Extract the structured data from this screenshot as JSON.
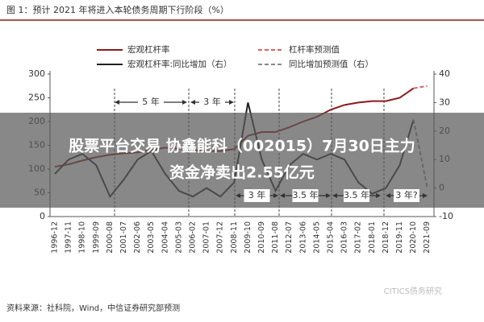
{
  "chart_data": {
    "type": "line",
    "title": "图 1：预计 2021 年将进入本轮债务周期下行阶段（%）",
    "source": "资料来源：社科院，Wind，中信证券研究部预测",
    "watermark": "CITICS债务研究",
    "categories": [
      "1996-12",
      "1997-11",
      "1998-10",
      "1999-09",
      "2000-08",
      "2001-07",
      "2002-06",
      "2003-05",
      "2004-04",
      "2005-03",
      "2006-02",
      "2007-01",
      "2007-12",
      "2008-11",
      "2009-10",
      "2010-09",
      "2011-08",
      "2012-07",
      "2013-06",
      "2014-05",
      "2015-04",
      "2016-03",
      "2017-02",
      "2018-01",
      "2018-12",
      "2019-11",
      "2020-10",
      "2021-09"
    ],
    "series": [
      {
        "name": "宏观杠杆率",
        "color": "#8b1a1a",
        "linestyle": "solid",
        "axis": "y",
        "values": [
          105,
          110,
          118,
          125,
          130,
          133,
          135,
          140,
          145,
          143,
          140,
          138,
          138,
          142,
          170,
          178,
          178,
          188,
          200,
          210,
          225,
          235,
          240,
          243,
          243,
          250,
          270,
          null
        ]
      },
      {
        "name": "杠杆率预测值",
        "color": "#e06060",
        "linestyle": "dashed",
        "axis": "y",
        "values": [
          null,
          null,
          null,
          null,
          null,
          null,
          null,
          null,
          null,
          null,
          null,
          null,
          null,
          null,
          null,
          null,
          null,
          null,
          null,
          null,
          null,
          null,
          null,
          null,
          null,
          null,
          270,
          275
        ]
      },
      {
        "name": "宏观杠杆率:同比增加（右）",
        "color": "#222222",
        "linestyle": "solid",
        "axis": "y2",
        "values": [
          5,
          10,
          12,
          8,
          -3,
          3,
          10,
          13,
          5,
          -1,
          -3,
          0,
          -3,
          2,
          30,
          10,
          -1,
          8,
          12,
          10,
          12,
          10,
          2,
          -2,
          0,
          8,
          24,
          null
        ]
      },
      {
        "name": "同比增加预测值（右）",
        "color": "#888888",
        "linestyle": "dashed",
        "axis": "y2",
        "values": [
          null,
          null,
          null,
          null,
          null,
          null,
          null,
          null,
          null,
          null,
          null,
          null,
          null,
          null,
          null,
          null,
          null,
          null,
          null,
          null,
          null,
          null,
          null,
          null,
          null,
          null,
          24,
          0
        ]
      }
    ],
    "ylim": [
      0,
      300
    ],
    "yticks": [
      0,
      50,
      100,
      150,
      200,
      250,
      300
    ],
    "y2lim": [
      -10,
      40
    ],
    "y2ticks": [
      -10,
      0,
      10,
      20,
      30,
      40
    ],
    "annotations": [
      "5 年",
      "3 年",
      "3 年",
      "3.5 年",
      "3.5 年",
      "3 年?"
    ]
  },
  "overlay": {
    "lines": [
      "股票平台交易 协鑫能科（002015）7月30日主力",
      "资金净卖出2.55亿元"
    ]
  }
}
